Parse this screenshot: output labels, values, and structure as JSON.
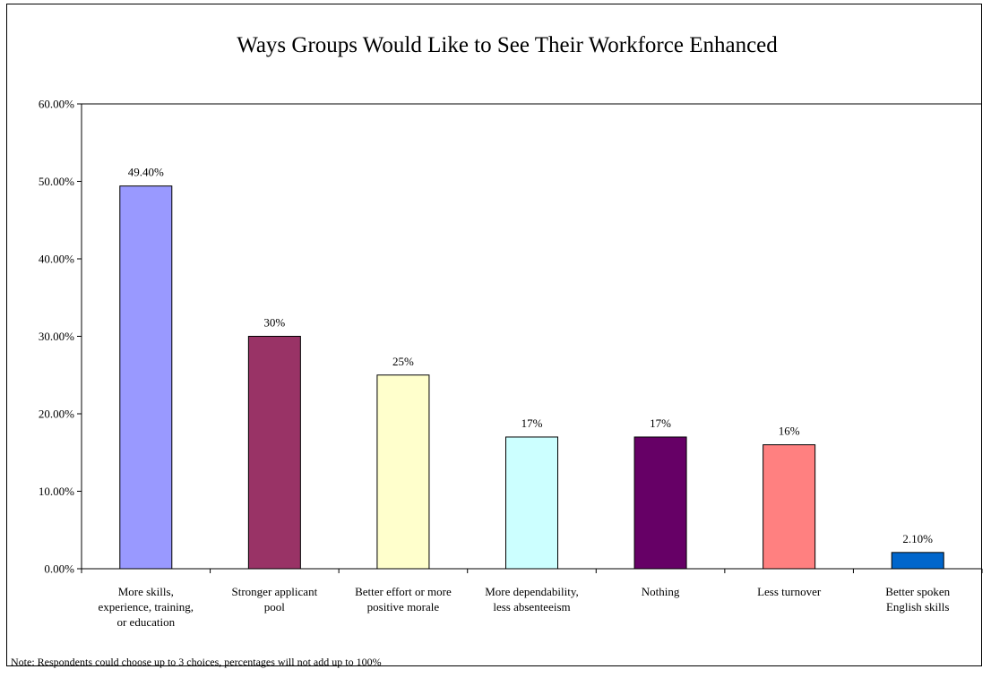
{
  "chart_data": {
    "type": "bar",
    "title": "Ways Groups Would Like to See Their Workforce Enhanced",
    "xlabel": "",
    "ylabel": "",
    "ylim": [
      0,
      0.6
    ],
    "yticks": [
      "0.00%",
      "10.00%",
      "20.00%",
      "30.00%",
      "40.00%",
      "50.00%",
      "60.00%"
    ],
    "categories": [
      [
        "More skills,",
        "experience, training,",
        "or education"
      ],
      [
        "Stronger applicant",
        "pool"
      ],
      [
        "Better effort or more",
        "positive morale"
      ],
      [
        "More dependability,",
        "less absenteeism"
      ],
      [
        "Nothing"
      ],
      [
        "Less turnover"
      ],
      [
        "Better spoken",
        "English skills"
      ]
    ],
    "values": [
      0.494,
      0.3,
      0.25,
      0.17,
      0.17,
      0.16,
      0.021
    ],
    "data_labels": [
      "49.40%",
      "30%",
      "25%",
      "17%",
      "17%",
      "16%",
      "2.10%"
    ],
    "bar_colors": [
      "#9999ff",
      "#993366",
      "#ffffcc",
      "#ccffff",
      "#660066",
      "#ff8080",
      "#0066cc"
    ],
    "grid": false,
    "legend": "none",
    "note": "Note: Respondents could choose up to 3 choices, percentages will not add up to 100%"
  }
}
